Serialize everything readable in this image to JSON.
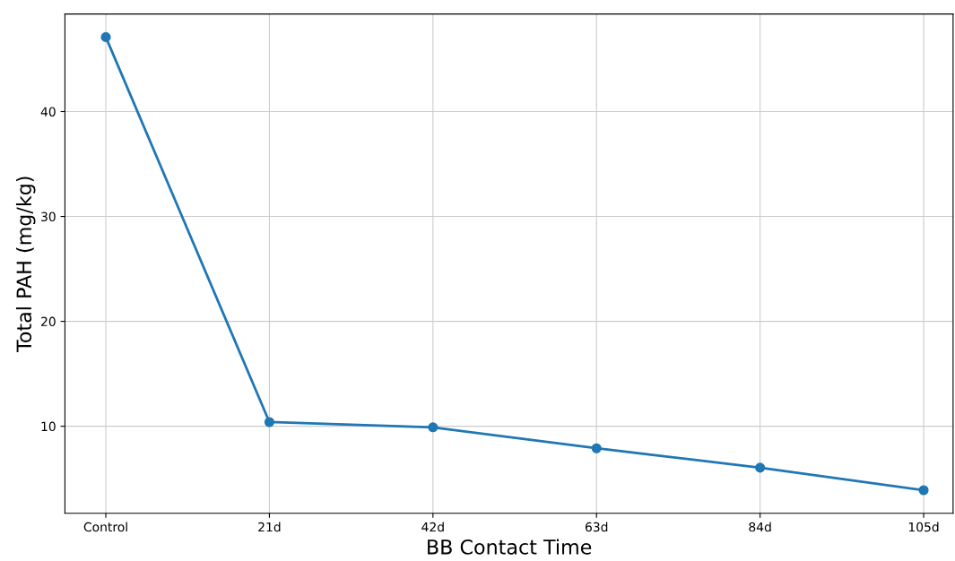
{
  "chart_data": {
    "type": "line",
    "xlabel": "BB Contact Time",
    "ylabel": "Total PAH (mg/kg)",
    "categories": [
      "Control",
      "21d",
      "42d",
      "63d",
      "84d",
      "105d"
    ],
    "series": [
      {
        "color": "#1f77b4",
        "values": [
          47.1,
          10.4,
          9.9,
          7.9,
          6.05,
          3.9
        ]
      }
    ],
    "ylim": [
      1.7,
      49.3
    ],
    "yticks": [
      10,
      20,
      30,
      40
    ],
    "grid": true,
    "marker": "circle",
    "line_style": "solid"
  }
}
